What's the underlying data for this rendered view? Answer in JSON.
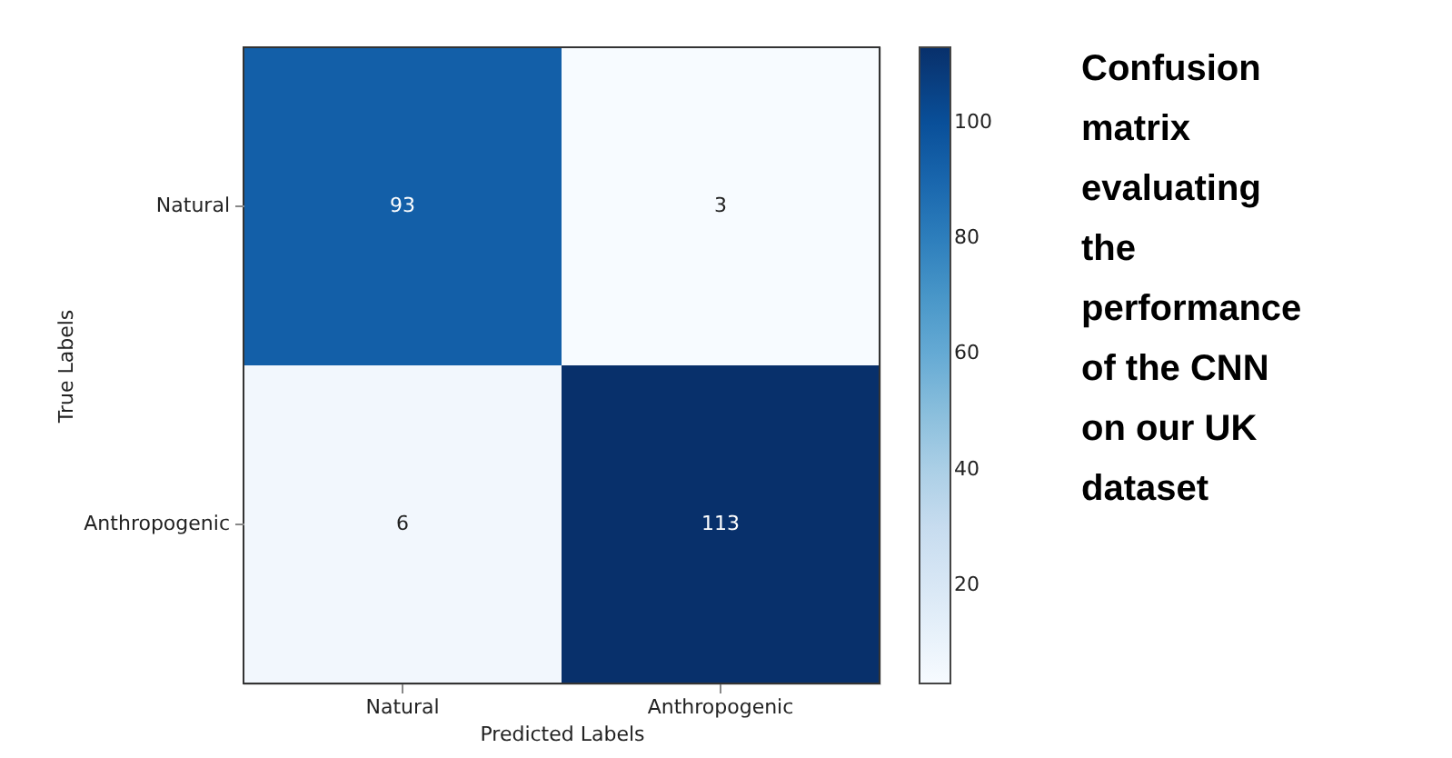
{
  "chart_data": {
    "type": "heatmap",
    "xlabel": "Predicted Labels",
    "ylabel": "True Labels",
    "categories": [
      "Natural",
      "Anthropogenic"
    ],
    "y_categories": [
      "Natural",
      "Anthropogenic"
    ],
    "cells": [
      [
        93,
        3
      ],
      [
        6,
        113
      ]
    ],
    "data_labels": true,
    "clim": [
      3,
      113
    ],
    "cticks": [
      20,
      40,
      60,
      80,
      100
    ],
    "annotations": [
      "Confusion matrix evaluating the performance of the CNN on our UK dataset"
    ]
  }
}
